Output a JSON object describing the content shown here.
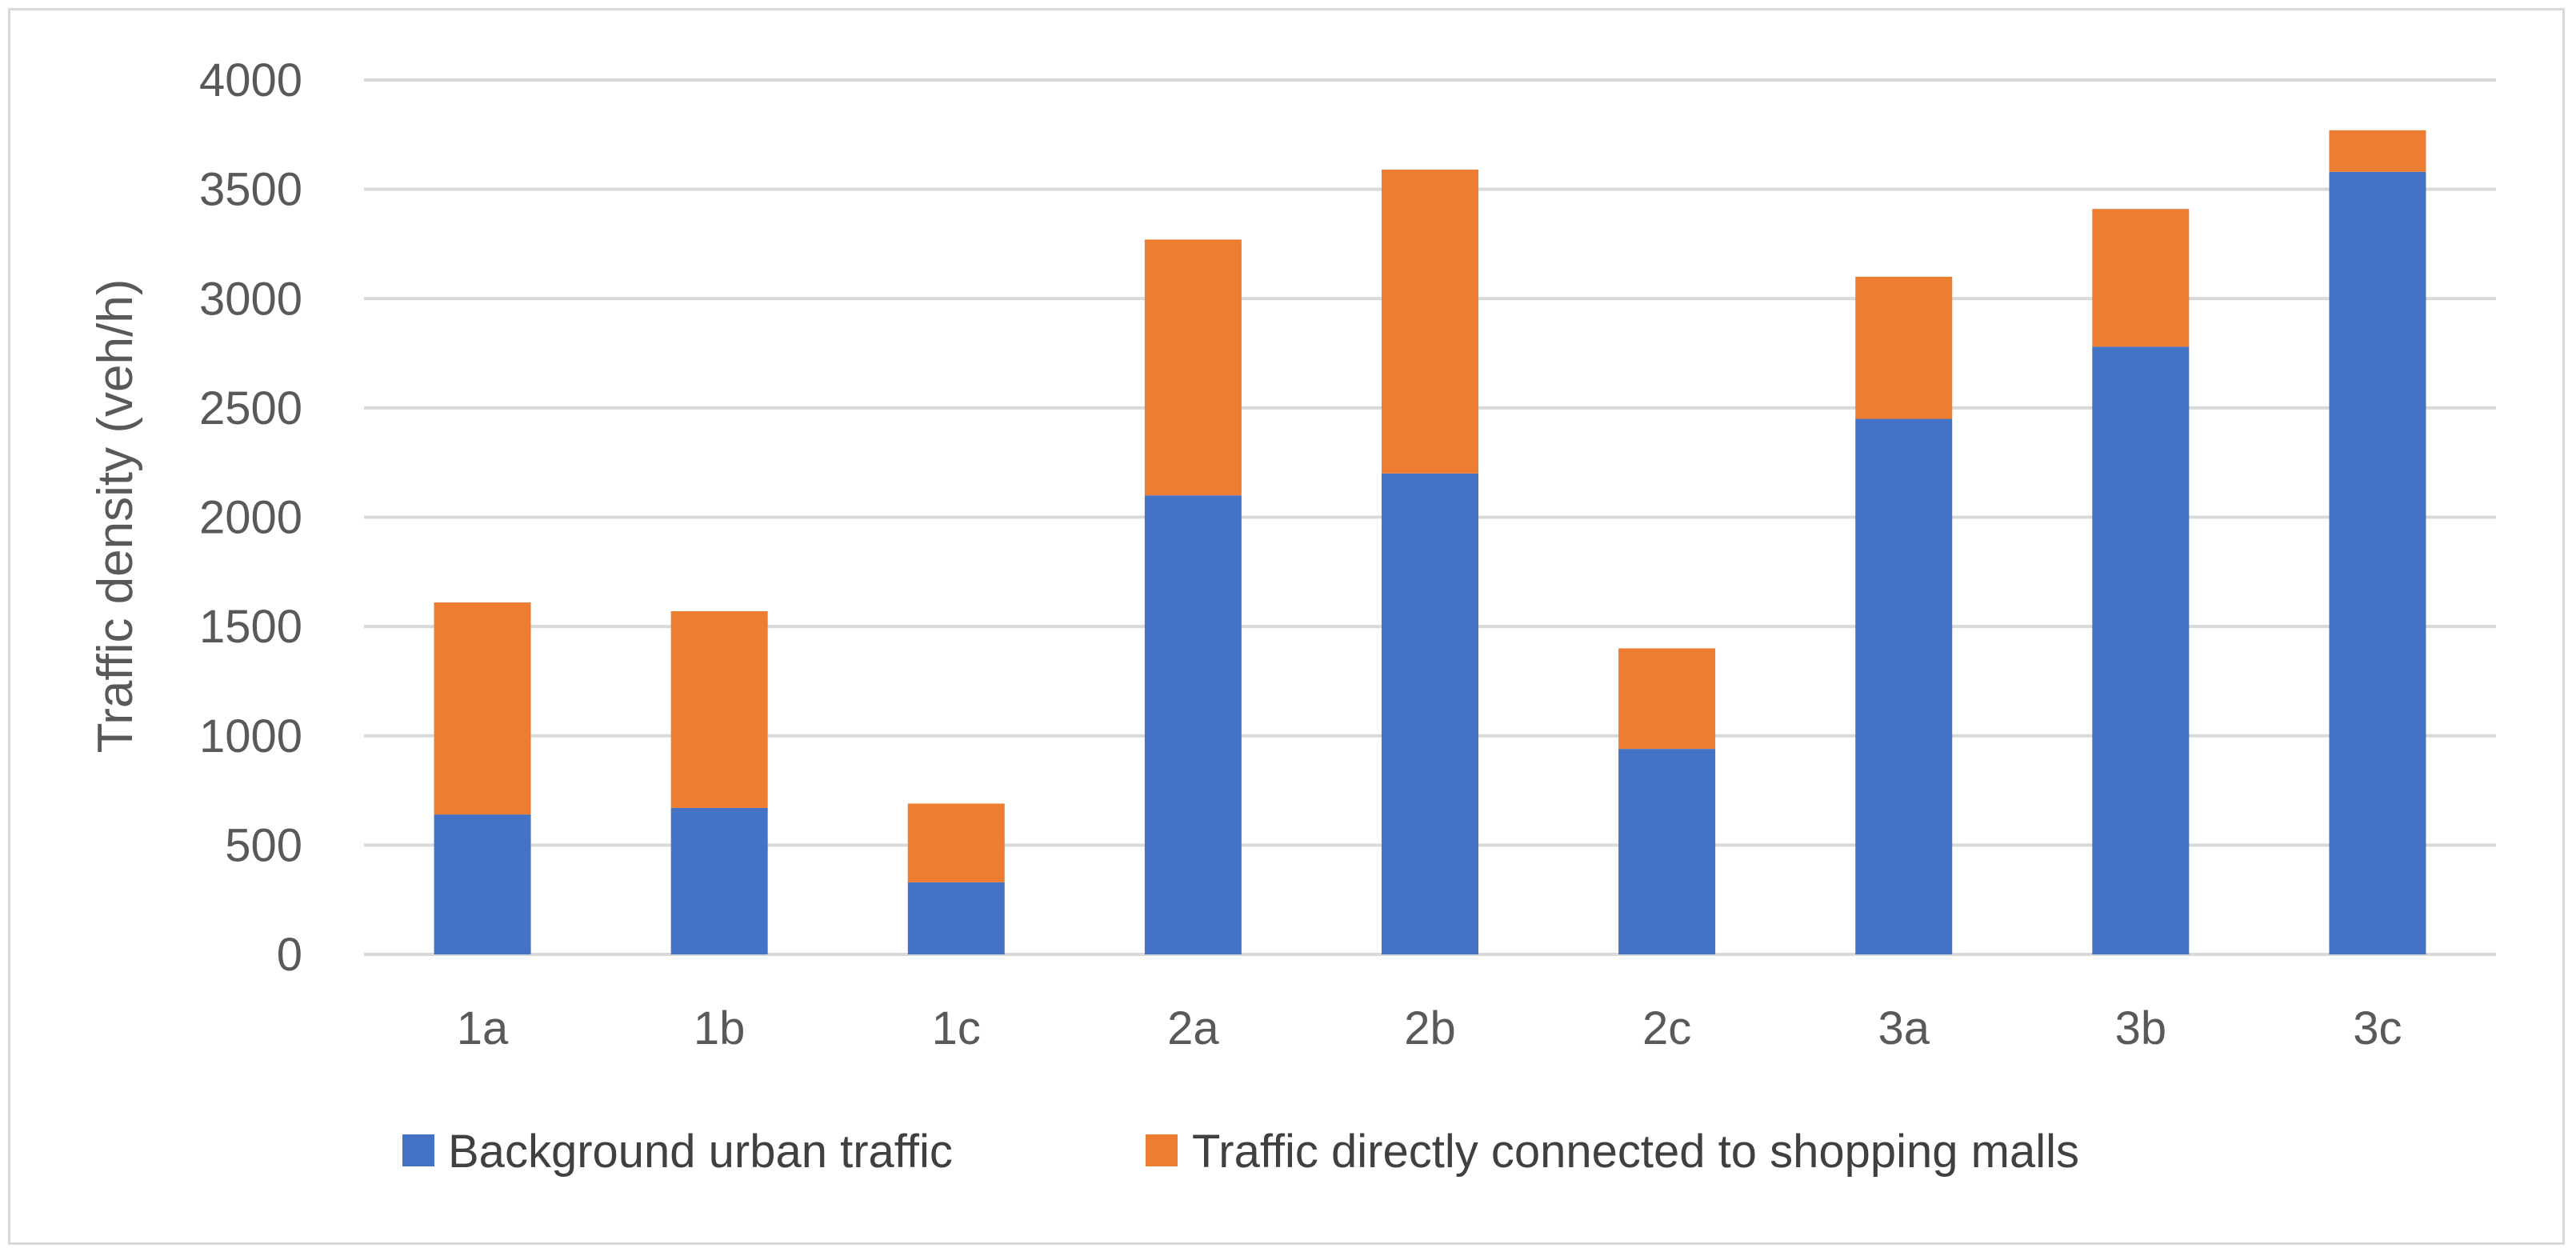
{
  "chart_data": {
    "type": "bar",
    "stacked": true,
    "title": "",
    "xlabel": "",
    "ylabel": "Traffic density (veh/h)",
    "ylim": [
      0,
      4000
    ],
    "yticks": [
      0,
      500,
      1000,
      1500,
      2000,
      2500,
      3000,
      3500,
      4000
    ],
    "grid": true,
    "legend_position": "bottom",
    "categories": [
      "1a",
      "1b",
      "1c",
      "2a",
      "2b",
      "2c",
      "3a",
      "3b",
      "3c"
    ],
    "series": [
      {
        "name": "Background urban traffic",
        "color": "#4472C4",
        "values": [
          640,
          670,
          330,
          2100,
          2200,
          940,
          2450,
          2780,
          3580
        ]
      },
      {
        "name": "Traffic directly connected to shopping malls",
        "color": "#ED7D31",
        "values": [
          970,
          900,
          360,
          1170,
          1390,
          460,
          650,
          630,
          190
        ]
      }
    ]
  }
}
